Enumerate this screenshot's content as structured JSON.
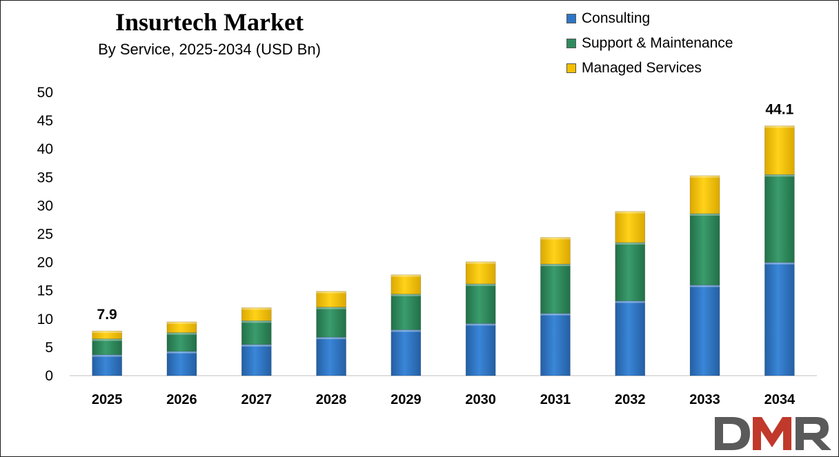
{
  "chart_data": {
    "type": "bar",
    "stacked": true,
    "title": "Insurtech Market",
    "subtitle": "By Service, 2025-2034 (USD Bn)",
    "xlabel": "",
    "ylabel": "",
    "ylim": [
      0,
      50
    ],
    "yticks": [
      0,
      5,
      10,
      15,
      20,
      25,
      30,
      35,
      40,
      45,
      50
    ],
    "grid": false,
    "legend_position": "top-right",
    "categories": [
      "2025",
      "2026",
      "2027",
      "2028",
      "2029",
      "2030",
      "2031",
      "2032",
      "2033",
      "2034"
    ],
    "series": [
      {
        "name": "Consulting",
        "color": "#2e75c8",
        "values": [
          3.7,
          4.3,
          5.5,
          6.8,
          8.1,
          9.2,
          11.0,
          13.2,
          16.0,
          20.0
        ]
      },
      {
        "name": "Support & Maintenance",
        "color": "#2e8b5e",
        "values": [
          2.8,
          3.3,
          4.2,
          5.3,
          6.3,
          7.0,
          8.7,
          10.3,
          12.6,
          15.5
        ]
      },
      {
        "name": "Managed Services",
        "color": "#f5c000",
        "values": [
          1.4,
          1.9,
          2.3,
          2.8,
          3.4,
          3.9,
          4.7,
          5.5,
          6.7,
          8.6
        ]
      }
    ],
    "data_labels": [
      {
        "category": "2025",
        "text": "7.9",
        "value": 7.9
      },
      {
        "category": "2034",
        "text": "44.1",
        "value": 44.1
      }
    ]
  },
  "logo": {
    "text": "DMR",
    "colors": [
      "#5a5a5a",
      "#c0392b"
    ]
  }
}
